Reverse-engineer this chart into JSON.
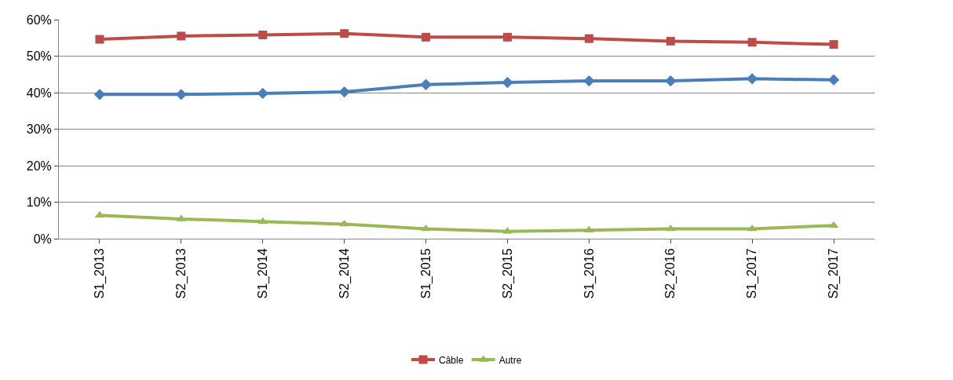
{
  "chart_data": {
    "type": "line",
    "categories": [
      "S1_2013",
      "S2_2013",
      "S1_2014",
      "S2_2014",
      "S1_2015",
      "S2_2015",
      "S1_2016",
      "S2_2016",
      "S1_2017",
      "S2_2017"
    ],
    "series": [
      {
        "color": "#4a7ebb",
        "marker": "diamond",
        "values": [
          39.5,
          39.5,
          39.8,
          40.2,
          42.2,
          42.8,
          43.2,
          43.2,
          43.8,
          43.5
        ]
      },
      {
        "name": "Câble",
        "color": "#be4b48",
        "marker": "square",
        "values": [
          54.6,
          55.5,
          55.8,
          56.2,
          55.2,
          55.2,
          54.8,
          54.1,
          53.8,
          53.2
        ]
      },
      {
        "name": "Autre",
        "color": "#98b954",
        "marker": "triangle",
        "values": [
          6.4,
          5.4,
          4.7,
          4.0,
          2.7,
          2.0,
          2.3,
          2.7,
          2.7,
          3.6
        ]
      }
    ],
    "ylim": [
      0,
      60
    ],
    "yticks": [
      {
        "value": 0,
        "label": "0%"
      },
      {
        "value": 10,
        "label": "10%"
      },
      {
        "value": 20,
        "label": "20%"
      },
      {
        "value": 30,
        "label": "30%"
      },
      {
        "value": 40,
        "label": "40%"
      },
      {
        "value": 50,
        "label": "50%"
      },
      {
        "value": 60,
        "label": "60%"
      }
    ],
    "grid": "y",
    "legend": "bottom",
    "line_style": "solid"
  }
}
